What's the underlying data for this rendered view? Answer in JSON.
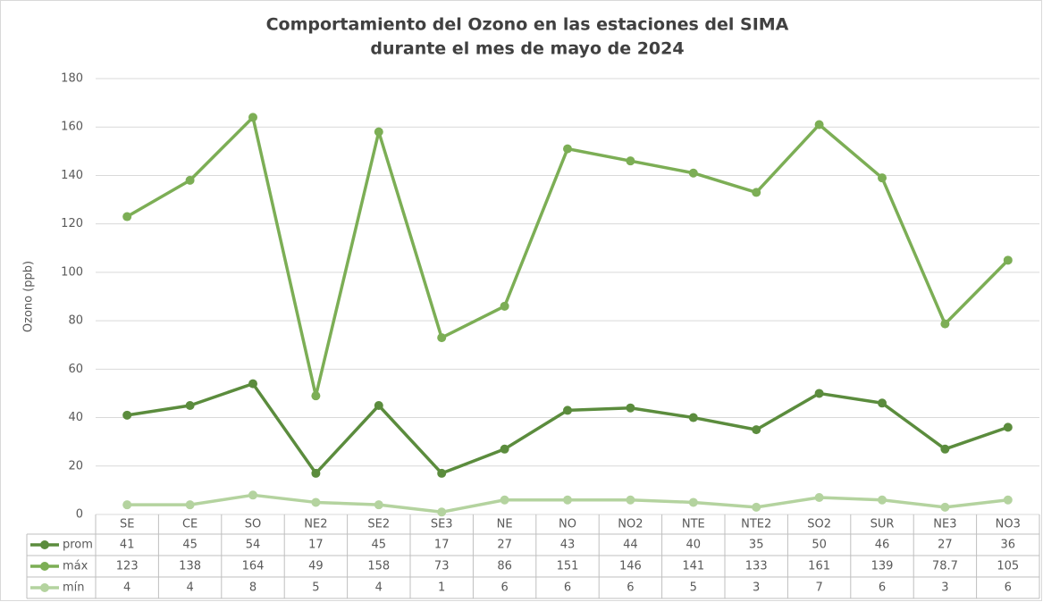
{
  "chart_data": {
    "type": "line",
    "title": [
      "Comportamiento del Ozono en las estaciones del SIMA",
      "durante el mes de mayo de 2024"
    ],
    "y_label": "Ozono (ppb)",
    "categories": [
      "SE",
      "CE",
      "SO",
      "NE2",
      "SE2",
      "SE3",
      "NE",
      "NO",
      "NO2",
      "NTE",
      "NTE2",
      "SO2",
      "SUR",
      "NE3",
      "NO3"
    ],
    "series": [
      {
        "name": "prom",
        "color": "#5b8c3d",
        "values": [
          41,
          45,
          54,
          17,
          45,
          17,
          27,
          43,
          44,
          40,
          35,
          50,
          46,
          27,
          36
        ]
      },
      {
        "name": "máx",
        "color": "#7cae55",
        "values": [
          123,
          138,
          164,
          49,
          158,
          73,
          86,
          151,
          146,
          141,
          133,
          161,
          139,
          78.7,
          105
        ]
      },
      {
        "name": "mín",
        "color": "#b4d39f",
        "values": [
          4,
          4,
          8,
          5,
          4,
          1,
          6,
          6,
          6,
          5,
          3,
          7,
          6,
          3,
          6
        ]
      }
    ],
    "ylim": [
      0,
      180
    ],
    "yticks": [
      0,
      20,
      40,
      60,
      80,
      100,
      120,
      140,
      160,
      180
    ],
    "grid": true,
    "data_table": true
  }
}
